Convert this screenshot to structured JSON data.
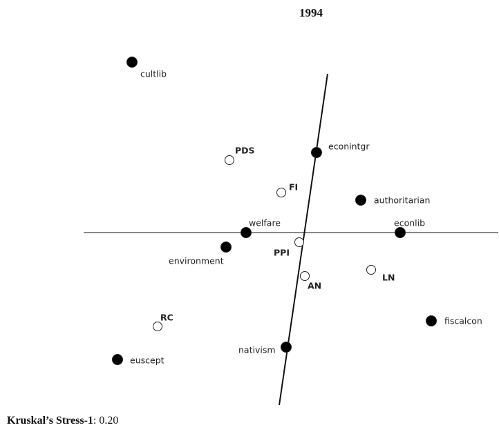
{
  "title": "1994",
  "nodes": [
    {
      "label": "cultlib",
      "filled": true
    },
    {
      "label": "PDS",
      "filled": false
    },
    {
      "label": "econintgr",
      "filled": true
    },
    {
      "label": "FI",
      "filled": false
    },
    {
      "label": "authoritarian",
      "filled": true
    },
    {
      "label": "welfare",
      "filled": true
    },
    {
      "label": "econlib",
      "filled": true
    },
    {
      "label": "environment",
      "filled": true
    },
    {
      "label": "PPI",
      "filled": false
    },
    {
      "label": "AN",
      "filled": false
    },
    {
      "label": "LN",
      "filled": false
    },
    {
      "label": "RC",
      "filled": false
    },
    {
      "label": "fiscalcon",
      "filled": true
    },
    {
      "label": "nativism",
      "filled": true
    },
    {
      "label": "euscept",
      "filled": true
    }
  ],
  "footer": {
    "label": "Kruskal’s Stress-1",
    "value": ": 0.20"
  }
}
